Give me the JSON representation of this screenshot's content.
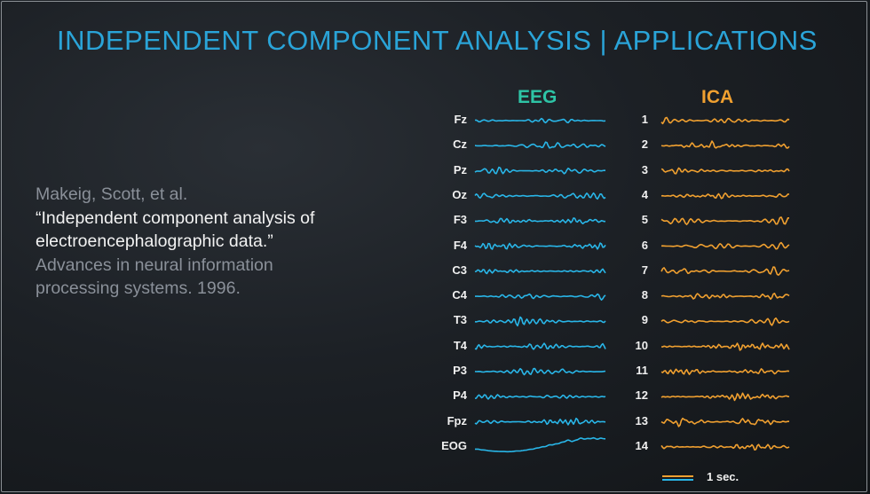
{
  "slide": {
    "title": "INDEPENDENT COMPONENT ANALYSIS | APPLICATIONS"
  },
  "citation": {
    "authors": "Makeig, Scott, et al.",
    "paper_title_line1": "“Independent component analysis of",
    "paper_title_line2": "electroencephalographic data.”",
    "venue_line1": "Advances in neural information",
    "venue_line2": "processing systems. 1996."
  },
  "eeg": {
    "header": "EEG",
    "color": "#29b6e8",
    "channels": [
      "Fz",
      "Cz",
      "Pz",
      "Oz",
      "F3",
      "F4",
      "C3",
      "C4",
      "T3",
      "T4",
      "P3",
      "P4",
      "Fpz",
      "EOG"
    ]
  },
  "ica": {
    "header": "ICA",
    "color": "#f0a030",
    "components": [
      "1",
      "2",
      "3",
      "4",
      "5",
      "6",
      "7",
      "8",
      "9",
      "10",
      "11",
      "12",
      "13",
      "14"
    ]
  },
  "scale_bar": {
    "label": "1 sec."
  }
}
